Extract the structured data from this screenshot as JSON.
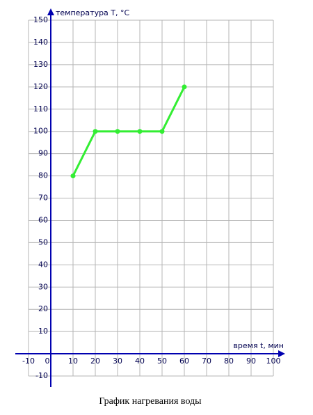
{
  "chart_data": {
    "type": "line",
    "title": "График нагревания воды",
    "x_label": "время t, мин",
    "y_label": "температура T, °C",
    "x": [
      10,
      20,
      30,
      40,
      50,
      60
    ],
    "series": [
      {
        "color": "#33ee33",
        "values": [
          80,
          100,
          100,
          100,
          100,
          120
        ]
      }
    ],
    "xlim": [
      -10,
      100
    ],
    "ylim": [
      -10,
      150
    ],
    "xticks": [
      -10,
      0,
      10,
      20,
      30,
      40,
      50,
      60,
      70,
      80,
      90,
      100
    ],
    "yticks": [
      -10,
      10,
      20,
      30,
      40,
      50,
      60,
      70,
      80,
      90,
      100,
      110,
      120,
      130,
      140,
      150
    ],
    "grid": true
  }
}
